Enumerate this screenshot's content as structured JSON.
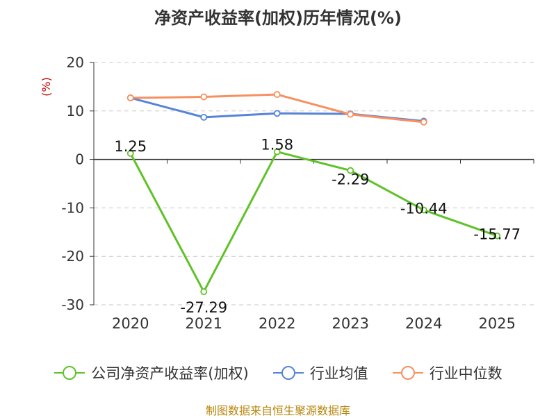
{
  "title": "净资产收益率(加权)历年情况(%)",
  "source": "制图数据来自恒生聚源数据库",
  "chart_data": {
    "type": "line",
    "title": "净资产收益率(加权)历年情况(%)",
    "ylabel": "(%)",
    "xlabel": "",
    "categories": [
      "2020",
      "2021",
      "2022",
      "2023",
      "2024",
      "2025"
    ],
    "ylim": [
      -30,
      20
    ],
    "yticks": [
      20,
      10,
      0,
      -10,
      -20,
      -30
    ],
    "grid": true,
    "legend_position": "bottom",
    "series": [
      {
        "name": "公司净资产收益率(加权)",
        "color": "#5fc227",
        "values": [
          1.25,
          -27.29,
          1.58,
          -2.29,
          -10.44,
          -15.77
        ],
        "labels": [
          "1.25",
          "-27.29",
          "1.58",
          "-2.29",
          "-10.44",
          "-15.77"
        ]
      },
      {
        "name": "行业均值",
        "color": "#5584d8",
        "values": [
          12.7,
          8.7,
          9.5,
          9.4,
          7.9,
          null
        ]
      },
      {
        "name": "行业中位数",
        "color": "#f79060",
        "values": [
          12.7,
          12.9,
          13.4,
          9.3,
          7.7,
          null
        ]
      }
    ]
  }
}
